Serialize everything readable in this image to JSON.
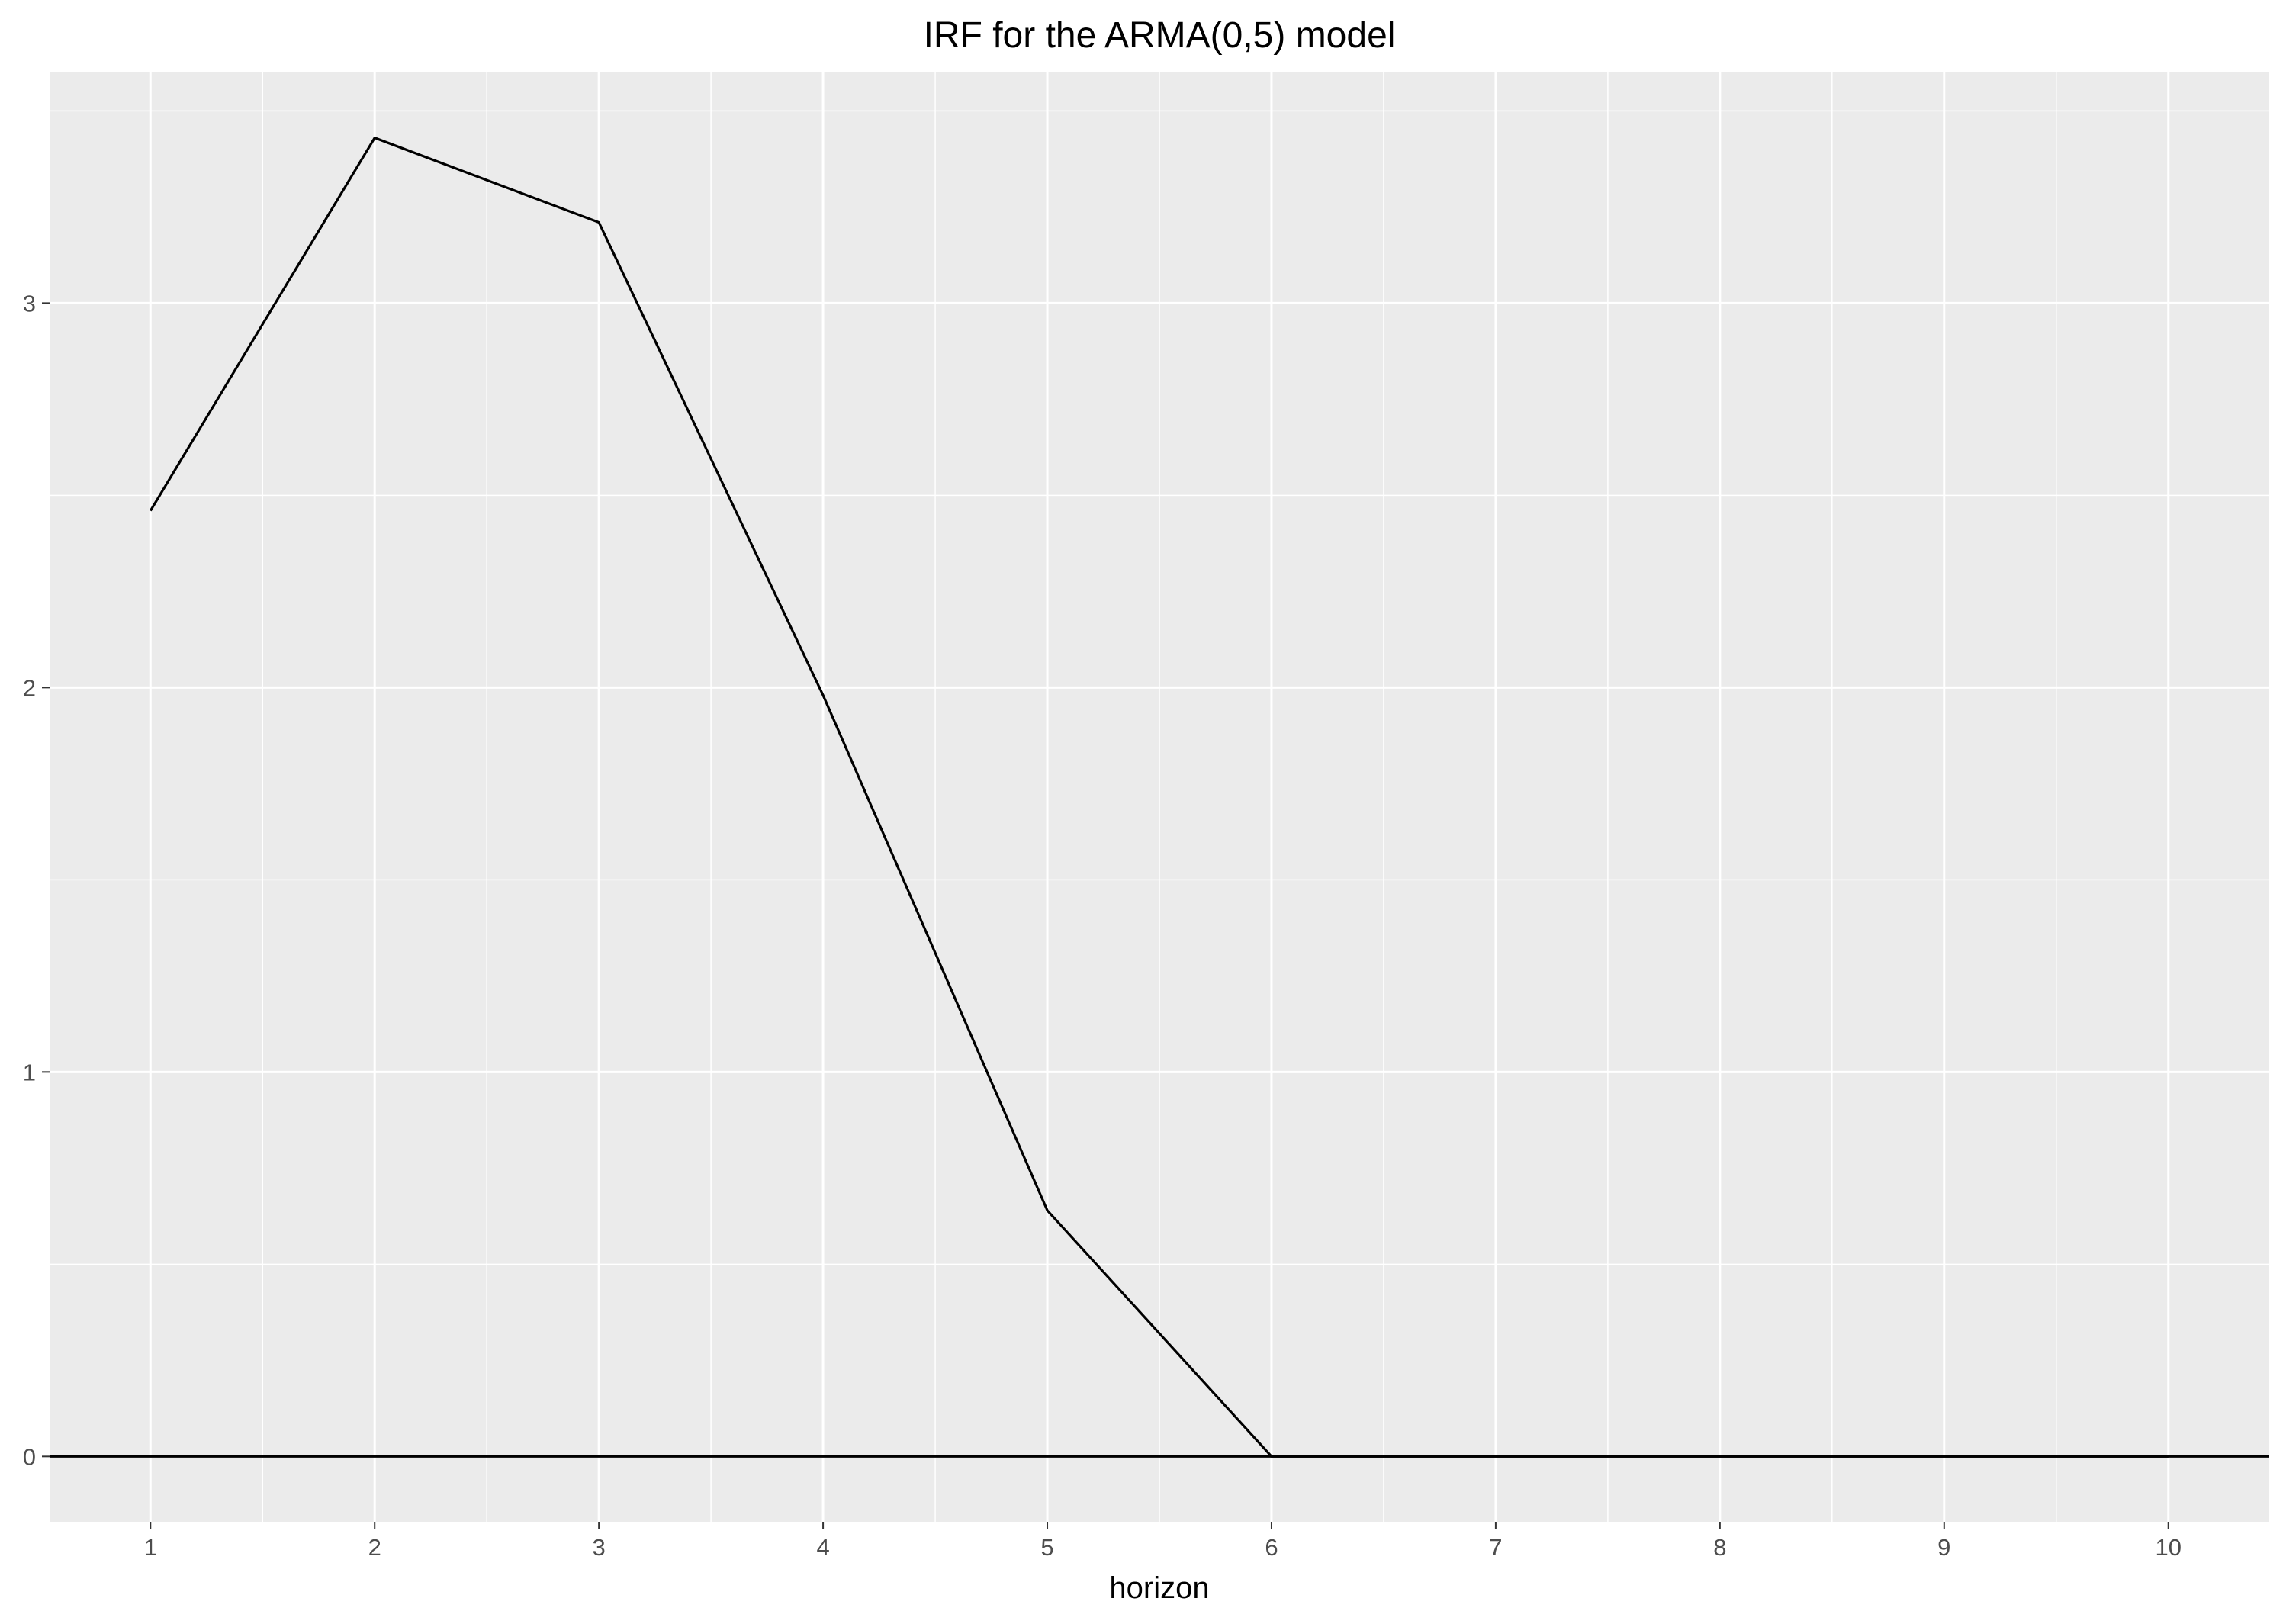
{
  "chart_data": {
    "type": "line",
    "title": "IRF for the ARMA(0,5) model",
    "xlabel": "horizon",
    "ylabel": "",
    "x": [
      1,
      2,
      3,
      4,
      5,
      6,
      7,
      8,
      9,
      10
    ],
    "series": [
      {
        "values": [
          2.46,
          3.43,
          3.21,
          1.98,
          0.64,
          0.0,
          0.0,
          0.0,
          0.0,
          0.0
        ],
        "color": "#000000"
      }
    ],
    "reference_line": {
      "y": 0,
      "color": "#000000"
    },
    "xlim": [
      0.55,
      10.45
    ],
    "ylim": [
      -0.17,
      3.6
    ],
    "x_ticks": [
      "1",
      "2",
      "3",
      "4",
      "5",
      "6",
      "7",
      "8",
      "9",
      "10"
    ],
    "y_ticks": [
      0,
      1,
      2,
      3
    ],
    "y_tick_labels": [
      "0",
      "1",
      "2",
      "3"
    ],
    "grid": true,
    "panel_background": "#ebebeb",
    "grid_color": "#ffffff",
    "tick_color": "#333333"
  }
}
